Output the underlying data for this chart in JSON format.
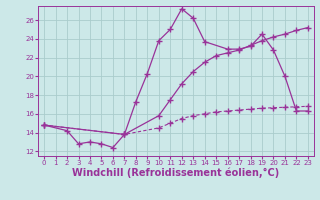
{
  "background_color": "#cce8e8",
  "grid_color": "#aacccc",
  "line_color": "#993399",
  "xlabel": "Windchill (Refroidissement éolien,°C)",
  "xlabel_fontsize": 7,
  "yticks": [
    12,
    14,
    16,
    18,
    20,
    22,
    24,
    26
  ],
  "xticks": [
    0,
    1,
    2,
    3,
    4,
    5,
    6,
    7,
    8,
    9,
    10,
    11,
    12,
    13,
    14,
    15,
    16,
    17,
    18,
    19,
    20,
    21,
    22,
    23
  ],
  "xlim": [
    -0.5,
    23.5
  ],
  "ylim": [
    11.5,
    27.5
  ],
  "line1_x": [
    0,
    2,
    3,
    4,
    5,
    6,
    7,
    8,
    9,
    10,
    11,
    12,
    13,
    14,
    16,
    17,
    18,
    19,
    20,
    21,
    22,
    23
  ],
  "line1_y": [
    14.8,
    14.2,
    12.8,
    13.0,
    12.8,
    12.4,
    13.8,
    17.3,
    20.3,
    23.8,
    25.0,
    27.2,
    26.2,
    23.7,
    22.9,
    22.9,
    23.2,
    24.5,
    22.8,
    20.0,
    16.3,
    16.3
  ],
  "line2_x": [
    0,
    7,
    10,
    11,
    12,
    13,
    14,
    15,
    16,
    17,
    18,
    19,
    20,
    21,
    22,
    23
  ],
  "line2_y": [
    14.8,
    13.8,
    15.8,
    17.5,
    19.2,
    20.5,
    21.5,
    22.2,
    22.5,
    22.8,
    23.3,
    23.8,
    24.2,
    24.5,
    24.9,
    25.2
  ],
  "line3_x": [
    0,
    7,
    10,
    11,
    12,
    13,
    14,
    15,
    16,
    17,
    18,
    19,
    20,
    21,
    22,
    23
  ],
  "line3_y": [
    14.8,
    13.8,
    14.5,
    15.0,
    15.5,
    15.8,
    16.0,
    16.2,
    16.3,
    16.4,
    16.5,
    16.6,
    16.65,
    16.7,
    16.75,
    16.8
  ]
}
